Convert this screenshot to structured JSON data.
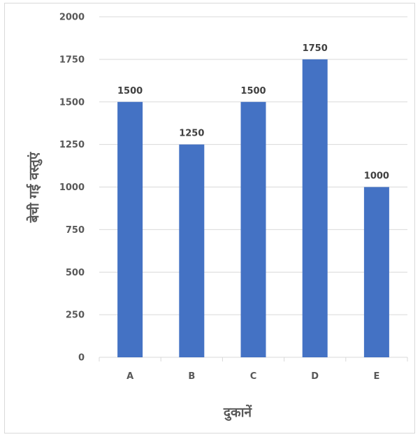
{
  "chart_data": {
    "type": "bar",
    "categories": [
      "A",
      "B",
      "C",
      "D",
      "E"
    ],
    "values": [
      1500,
      1250,
      1500,
      1750,
      1000
    ],
    "data_labels": [
      "1500",
      "1250",
      "1500",
      "1750",
      "1000"
    ],
    "xlabel": "दुकानें",
    "ylabel": "बेची गई वस्तुएं",
    "ylim": [
      0,
      2000
    ],
    "yticks": [
      0,
      250,
      500,
      750,
      1000,
      1250,
      1500,
      1750,
      2000
    ],
    "grid": true,
    "legend": "none",
    "bar_color": "#4472c4"
  }
}
